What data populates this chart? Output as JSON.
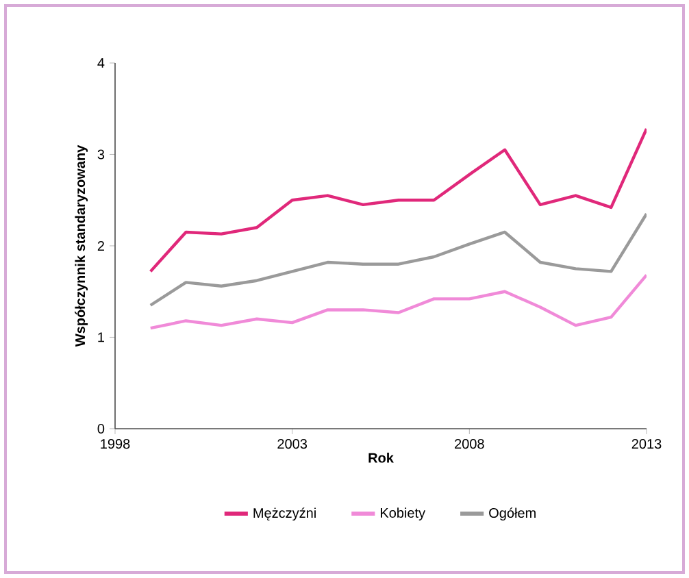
{
  "chart_data": {
    "type": "line",
    "xlabel": "Rok",
    "ylabel": "Współczynnik standaryzowany",
    "x": [
      1999,
      2000,
      2001,
      2002,
      2003,
      2004,
      2005,
      2006,
      2007,
      2008,
      2009,
      2010,
      2011,
      2012,
      2013
    ],
    "series": [
      {
        "name": "Mężczyźni",
        "color": "#e0287a",
        "values": [
          1.72,
          2.15,
          2.13,
          2.2,
          2.5,
          2.55,
          2.45,
          2.5,
          2.5,
          2.78,
          3.05,
          2.45,
          2.55,
          2.42,
          3.28
        ]
      },
      {
        "name": "Kobiety",
        "color": "#f08ad8",
        "values": [
          1.1,
          1.18,
          1.13,
          1.2,
          1.16,
          1.3,
          1.3,
          1.27,
          1.42,
          1.42,
          1.5,
          1.33,
          1.13,
          1.22,
          1.68
        ]
      },
      {
        "name": "Ogółem",
        "color": "#9a9a9a",
        "values": [
          1.35,
          1.6,
          1.56,
          1.62,
          1.72,
          1.82,
          1.8,
          1.8,
          1.88,
          2.02,
          2.15,
          1.82,
          1.75,
          1.72,
          2.35
        ]
      }
    ],
    "xlim": [
      1998,
      2013
    ],
    "ylim": [
      0,
      4
    ],
    "xticks": [
      1998,
      2003,
      2008,
      2013
    ],
    "yticks": [
      0,
      1,
      2,
      3,
      4
    ],
    "grid": false,
    "legend": "bottom",
    "marker": "none",
    "line_style": "solid"
  }
}
